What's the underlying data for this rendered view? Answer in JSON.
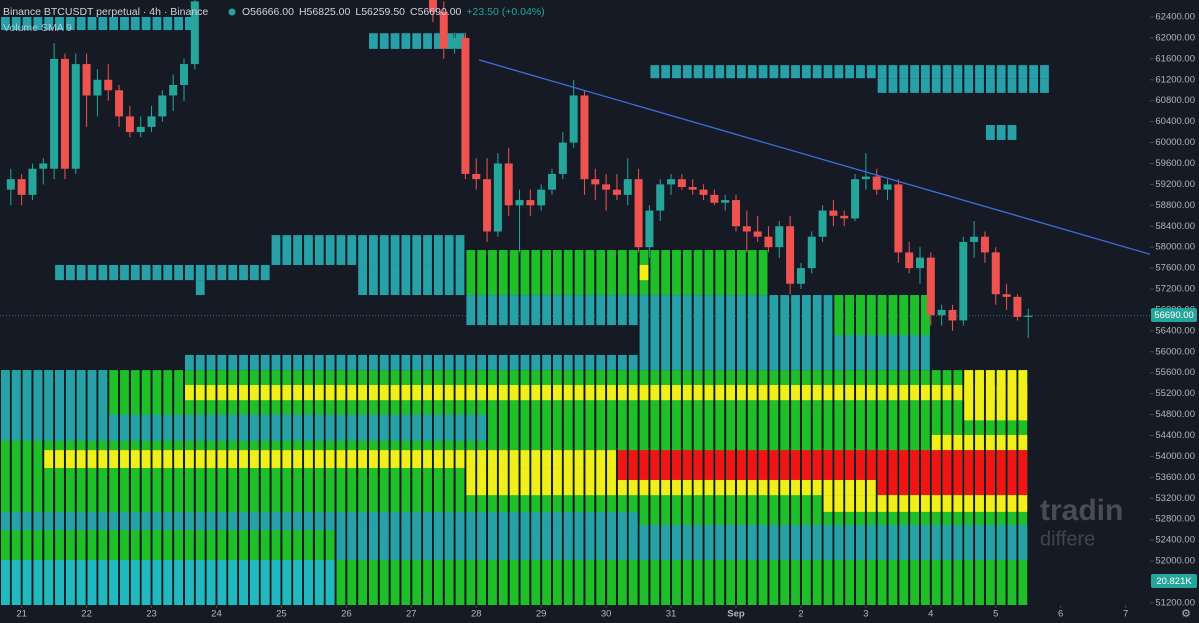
{
  "header": {
    "title": "Binance BTCUSDT perpetual · 4h · Binance",
    "open": "O56666.00",
    "high": "H56825.00",
    "low": "L56259.50",
    "close": "C56690.00",
    "change": "+23.50 (+0.04%)",
    "indicator": "Volume SMA 9"
  },
  "price_tag": "56690.00",
  "volume_tag": "20.821K",
  "watermark": [
    "tradin",
    "differe"
  ],
  "chart_data": {
    "type": "candlestick",
    "up_color": "#26a69a",
    "down_color": "#ef5350",
    "xlim": [
      -8,
      417
    ],
    "ylim": [
      51160,
      62725
    ],
    "xticks": [
      {
        "value": 0,
        "label": "21"
      },
      {
        "value": 24,
        "label": "22"
      },
      {
        "value": 48,
        "label": "23"
      },
      {
        "value": 72,
        "label": "24"
      },
      {
        "value": 96,
        "label": "25"
      },
      {
        "value": 120,
        "label": "26"
      },
      {
        "value": 144,
        "label": "27"
      },
      {
        "value": 168,
        "label": "28"
      },
      {
        "value": 192,
        "label": "29"
      },
      {
        "value": 216,
        "label": "30"
      },
      {
        "value": 240,
        "label": "31"
      },
      {
        "value": 264,
        "label": "Sep"
      },
      {
        "value": 288,
        "label": "2"
      },
      {
        "value": 312,
        "label": "3"
      },
      {
        "value": 336,
        "label": "4"
      },
      {
        "value": 360,
        "label": "5"
      },
      {
        "value": 384,
        "label": "6"
      },
      {
        "value": 408,
        "label": "7"
      }
    ],
    "yticks": [
      {
        "value": 51200,
        "label": "51200.00"
      },
      {
        "value": 51600,
        "label": "51600.00"
      },
      {
        "value": 52000,
        "label": "52000.00"
      },
      {
        "value": 52400,
        "label": "52400.00"
      },
      {
        "value": 52800,
        "label": "52800.00"
      },
      {
        "value": 53200,
        "label": "53200.00"
      },
      {
        "value": 53600,
        "label": "53600.00"
      },
      {
        "value": 54000,
        "label": "54000.00"
      },
      {
        "value": 54400,
        "label": "54400.00"
      },
      {
        "value": 54800,
        "label": "54800.00"
      },
      {
        "value": 55200,
        "label": "55200.00"
      },
      {
        "value": 55600,
        "label": "55600.00"
      },
      {
        "value": 56000,
        "label": "56000.00"
      },
      {
        "value": 56400,
        "label": "56400.00"
      },
      {
        "value": 56800,
        "label": "56800.00"
      },
      {
        "value": 57200,
        "label": "57200.00"
      },
      {
        "value": 57600,
        "label": "57600.00"
      },
      {
        "value": 58000,
        "label": "58000.00"
      },
      {
        "value": 58400,
        "label": "58400.00"
      },
      {
        "value": 58800,
        "label": "58800.00"
      },
      {
        "value": 59200,
        "label": "59200.00"
      },
      {
        "value": 59600,
        "label": "59600.00"
      },
      {
        "value": 60000,
        "label": "60000.00"
      },
      {
        "value": 60400,
        "label": "60400.00"
      },
      {
        "value": 60800,
        "label": "60800.00"
      },
      {
        "value": 61200,
        "label": "61200.00"
      },
      {
        "value": 61600,
        "label": "61600.00"
      },
      {
        "value": 62000,
        "label": "62000.00"
      },
      {
        "value": 62400,
        "label": "62400.00"
      }
    ],
    "x": [
      -4,
      0,
      4,
      8,
      12,
      16,
      20,
      24,
      28,
      32,
      36,
      40,
      44,
      48,
      52,
      56,
      60,
      64,
      152,
      156,
      160,
      164,
      168,
      172,
      176,
      180,
      184,
      188,
      192,
      196,
      200,
      204,
      208,
      212,
      216,
      220,
      224,
      228,
      232,
      236,
      240,
      244,
      248,
      252,
      256,
      260,
      264,
      268,
      272,
      276,
      280,
      284,
      288,
      292,
      296,
      300,
      304,
      308,
      312,
      316,
      320,
      324,
      328,
      332,
      336,
      340,
      344,
      348,
      352,
      356,
      360,
      364,
      368,
      372
    ],
    "open": [
      59100,
      59300,
      59000,
      59500,
      59500,
      61600,
      59500,
      61500,
      60900,
      61200,
      61000,
      60500,
      60200,
      60300,
      60500,
      60900,
      61100,
      61500,
      63000,
      62500,
      61800,
      62000,
      59400,
      59300,
      58300,
      59600,
      58800,
      58900,
      58800,
      59100,
      59400,
      60000,
      60900,
      59300,
      59200,
      59100,
      59000,
      59300,
      58000,
      58700,
      59200,
      59300,
      59150,
      59100,
      59000,
      58850,
      58900,
      58400,
      58300,
      58200,
      58000,
      58400,
      57300,
      57600,
      58200,
      58700,
      58600,
      58550,
      59300,
      59350,
      59100,
      59200,
      57900,
      57600,
      57800,
      56700,
      56800,
      56600,
      58100,
      58200,
      57900,
      57100,
      57050,
      56666
    ],
    "high": [
      59500,
      59400,
      59600,
      59700,
      61900,
      61700,
      61700,
      61700,
      61400,
      61500,
      61100,
      60700,
      60500,
      60700,
      61000,
      61300,
      61600,
      62800,
      63200,
      62700,
      62100,
      62100,
      59700,
      59700,
      59800,
      59900,
      59100,
      59100,
      59200,
      59500,
      60200,
      61200,
      61000,
      59500,
      59400,
      59400,
      59700,
      59500,
      58800,
      59300,
      59400,
      59400,
      59300,
      59200,
      59100,
      59000,
      59000,
      58700,
      58600,
      58400,
      58500,
      58600,
      57700,
      58300,
      58800,
      58900,
      58700,
      59400,
      59800,
      59500,
      59300,
      59300,
      58100,
      58000,
      57900,
      56900,
      56900,
      58200,
      58500,
      58300,
      58000,
      57300,
      57100,
      56825
    ],
    "low": [
      58800,
      58800,
      58900,
      59200,
      59300,
      59300,
      59400,
      60300,
      60500,
      60800,
      60300,
      60100,
      60100,
      60200,
      60400,
      60600,
      60800,
      61400,
      62300,
      61600,
      61700,
      59300,
      59100,
      58100,
      58200,
      58600,
      57900,
      58600,
      58700,
      59000,
      59300,
      59900,
      59000,
      58900,
      58700,
      58900,
      58800,
      57900,
      57800,
      58500,
      59000,
      59100,
      59000,
      58900,
      58800,
      58700,
      58300,
      57900,
      58100,
      57900,
      57800,
      57100,
      57200,
      57500,
      58100,
      58400,
      58400,
      58500,
      59100,
      59000,
      58900,
      57700,
      57500,
      57300,
      56500,
      56500,
      56400,
      56500,
      57800,
      57700,
      56900,
      56800,
      56600,
      56259.5
    ],
    "close": [
      59300,
      59000,
      59500,
      59600,
      61600,
      59500,
      61500,
      60900,
      61200,
      61000,
      60500,
      60200,
      60300,
      60500,
      60900,
      61100,
      61500,
      62700,
      62500,
      61800,
      62000,
      59400,
      59300,
      58300,
      59600,
      58800,
      58900,
      58800,
      59100,
      59400,
      60000,
      60900,
      59300,
      59200,
      59100,
      59000,
      59300,
      58000,
      58700,
      59200,
      59300,
      59150,
      59100,
      59000,
      58850,
      58900,
      58400,
      58300,
      58200,
      58000,
      58400,
      57300,
      57600,
      58200,
      58700,
      58600,
      58550,
      59300,
      59350,
      59100,
      59200,
      57900,
      57600,
      57800,
      56700,
      56800,
      56600,
      58100,
      58200,
      57900,
      57100,
      57050,
      56666,
      56690
    ],
    "heatmap": [
      {
        "from": -8,
        "to": 372,
        "low": 51160,
        "high": 55650,
        "color": "#1fbf2a"
      },
      {
        "from": -8,
        "to": 64,
        "low": 62150,
        "high": 62400,
        "color": "#27a0a8"
      },
      {
        "from": 128,
        "to": 164,
        "low": 61790,
        "high": 62090,
        "color": "#27a0a8"
      },
      {
        "from": 232,
        "to": 380,
        "low": 61230,
        "high": 61480,
        "color": "#27a0a8"
      },
      {
        "from": 316,
        "to": 380,
        "low": 60950,
        "high": 61230,
        "color": "#27a0a8"
      },
      {
        "from": 356,
        "to": 368,
        "low": 60050,
        "high": 60335,
        "color": "#27a0a8"
      },
      {
        "from": 12,
        "to": 92,
        "low": 57370,
        "high": 57660,
        "color": "#27a0a8"
      },
      {
        "from": 64,
        "to": 68,
        "low": 57085,
        "high": 57370,
        "color": "#27a0a8"
      },
      {
        "from": 92,
        "to": 164,
        "low": 57660,
        "high": 58230,
        "color": "#27a0a8"
      },
      {
        "from": 124,
        "to": 164,
        "low": 57085,
        "high": 57660,
        "color": "#27a0a8"
      },
      {
        "from": 164,
        "to": 228,
        "low": 56510,
        "high": 57085,
        "color": "#27a0a8"
      },
      {
        "from": 228,
        "to": 336,
        "low": 55650,
        "high": 57085,
        "color": "#27a0a8"
      },
      {
        "from": 164,
        "to": 276,
        "low": 57085,
        "high": 57945,
        "color": "#1fbf2a"
      },
      {
        "from": 228,
        "to": 232,
        "low": 57370,
        "high": 57660,
        "color": "#f2ee1a"
      },
      {
        "from": 300,
        "to": 336,
        "low": 56320,
        "high": 57085,
        "color": "#1fbf2a"
      },
      {
        "from": 60,
        "to": 228,
        "low": 55650,
        "high": 55940,
        "color": "#27a0a8"
      },
      {
        "from": -8,
        "to": 32,
        "low": 54300,
        "high": 55650,
        "color": "#27a0a8"
      },
      {
        "from": 32,
        "to": 172,
        "low": 54300,
        "high": 54800,
        "color": "#27a0a8"
      },
      {
        "from": 60,
        "to": 372,
        "low": 55075,
        "high": 55365,
        "color": "#f2ee1a"
      },
      {
        "from": 348,
        "to": 372,
        "low": 54690,
        "high": 55650,
        "color": "#f2ee1a"
      },
      {
        "from": 336,
        "to": 372,
        "low": 54120,
        "high": 54410,
        "color": "#f2ee1a"
      },
      {
        "from": 8,
        "to": 220,
        "low": 53780,
        "high": 54120,
        "color": "#f2ee1a"
      },
      {
        "from": 164,
        "to": 220,
        "low": 53260,
        "high": 53780,
        "color": "#f2ee1a"
      },
      {
        "from": 220,
        "to": 372,
        "low": 53550,
        "high": 54120,
        "color": "#f01414"
      },
      {
        "from": 220,
        "to": 316,
        "low": 53260,
        "high": 53550,
        "color": "#f2ee1a"
      },
      {
        "from": 316,
        "to": 372,
        "low": 53260,
        "high": 53550,
        "color": "#f01414"
      },
      {
        "from": 296,
        "to": 372,
        "low": 52940,
        "high": 53260,
        "color": "#f2ee1a"
      },
      {
        "from": -8,
        "to": 228,
        "low": 52590,
        "high": 52940,
        "color": "#27a0a8"
      },
      {
        "from": 116,
        "to": 372,
        "low": 52020,
        "high": 52690,
        "color": "#27a0a8"
      },
      {
        "from": -8,
        "to": 116,
        "low": 51160,
        "high": 52020,
        "color": "#22b8c0"
      }
    ],
    "trendline": {
      "x": [
        169,
        418
      ],
      "y": [
        61580,
        57850
      ],
      "color": "#3d6fe0"
    }
  }
}
